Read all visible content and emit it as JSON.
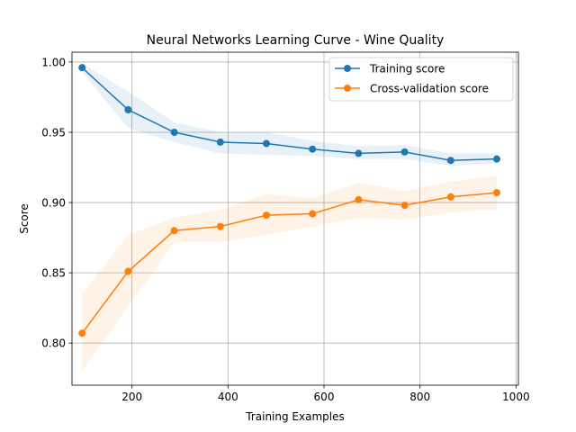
{
  "chart_data": {
    "type": "line",
    "title": "Neural Networks Learning Curve - Wine Quality",
    "xlabel": "Training Examples",
    "ylabel": "Score",
    "xlim": [
      75,
      1005
    ],
    "ylim": [
      0.77,
      1.007
    ],
    "xticks": [
      200,
      400,
      600,
      800,
      1000
    ],
    "yticks": [
      0.8,
      0.85,
      0.9,
      0.95,
      1.0
    ],
    "xtick_labels": [
      "200",
      "400",
      "600",
      "800",
      "1000"
    ],
    "ytick_labels": [
      "0.80",
      "0.85",
      "0.90",
      "0.95",
      "1.00"
    ],
    "grid": true,
    "legend_position": "top-right",
    "x": [
      96,
      192,
      288,
      384,
      480,
      576,
      672,
      768,
      864,
      960
    ],
    "series": [
      {
        "name": "Training score",
        "color": "#1f77b4",
        "values": [
          0.996,
          0.966,
          0.95,
          0.943,
          0.942,
          0.938,
          0.935,
          0.936,
          0.93,
          0.931
        ],
        "lower": [
          0.993,
          0.953,
          0.943,
          0.935,
          0.934,
          0.933,
          0.931,
          0.931,
          0.926,
          0.928
        ],
        "upper": [
          0.999,
          0.979,
          0.957,
          0.95,
          0.95,
          0.944,
          0.94,
          0.941,
          0.935,
          0.935
        ]
      },
      {
        "name": "Cross-validation score",
        "color": "#ff7f0e",
        "values": [
          0.807,
          0.851,
          0.88,
          0.883,
          0.891,
          0.892,
          0.902,
          0.898,
          0.904,
          0.907
        ],
        "lower": [
          0.78,
          0.826,
          0.872,
          0.872,
          0.877,
          0.883,
          0.889,
          0.888,
          0.893,
          0.895
        ],
        "upper": [
          0.835,
          0.877,
          0.889,
          0.895,
          0.906,
          0.903,
          0.914,
          0.908,
          0.915,
          0.919
        ]
      }
    ]
  }
}
